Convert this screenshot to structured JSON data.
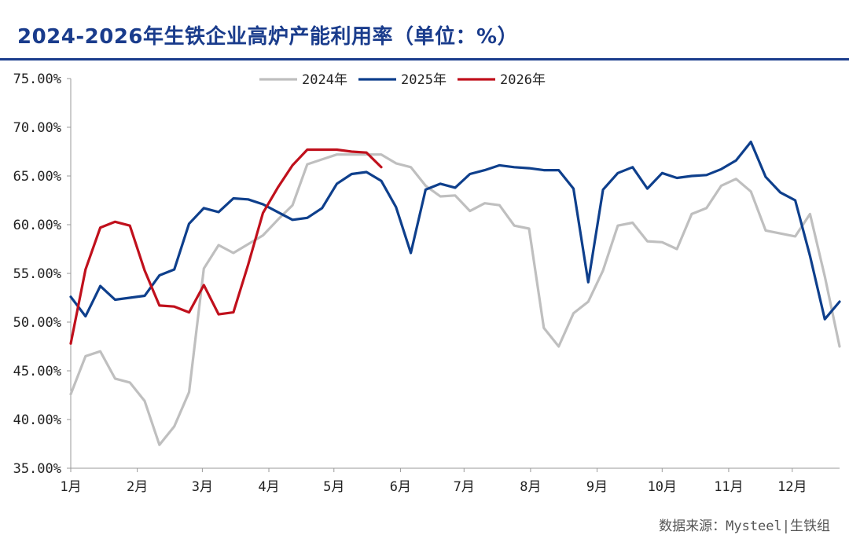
{
  "title": "2024-2026年生铁企业高炉产能利用率（单位：%）",
  "source": "数据来源：Mysteel|生铁组",
  "colors": {
    "title": "#1a3c8c",
    "s2024": "#bfbfbf",
    "s2025": "#0e3f8c",
    "s2026": "#c0101c"
  },
  "chart_data": {
    "type": "line",
    "title": "2024-2026年生铁企业高炉产能利用率（单位：%）",
    "xlabel": "",
    "ylabel": "",
    "ylim": [
      35,
      75
    ],
    "xlim": [
      1,
      53
    ],
    "y_ticks": [
      35,
      40,
      45,
      50,
      55,
      60,
      65,
      70,
      75
    ],
    "y_tick_labels": [
      "35.00%",
      "40.00%",
      "45.00%",
      "50.00%",
      "55.00%",
      "60.00%",
      "65.00%",
      "70.00%",
      "75.00%"
    ],
    "x_tick_labels": [
      {
        "label": "1月",
        "week": 1
      },
      {
        "label": "2月",
        "week": 5.5
      },
      {
        "label": "3月",
        "week": 9.9
      },
      {
        "label": "4月",
        "week": 14.4
      },
      {
        "label": "5月",
        "week": 18.8
      },
      {
        "label": "6月",
        "week": 23.3
      },
      {
        "label": "7月",
        "week": 27.6
      },
      {
        "label": "8月",
        "week": 32.1
      },
      {
        "label": "9月",
        "week": 36.6
      },
      {
        "label": "10月",
        "week": 41
      },
      {
        "label": "11月",
        "week": 45.5
      },
      {
        "label": "12月",
        "week": 49.8
      }
    ],
    "legend_position": "top",
    "grid": false,
    "series": [
      {
        "name": "2024年",
        "color": "#bfbfbf",
        "x": [
          1,
          2,
          3,
          4,
          5,
          6,
          7,
          8,
          9,
          10,
          11,
          12,
          13,
          14,
          15,
          16,
          17,
          18,
          19,
          20,
          21,
          22,
          23,
          24,
          25,
          26,
          27,
          28,
          29,
          30,
          31,
          32,
          33,
          34,
          35,
          36,
          37,
          38,
          39,
          40,
          41,
          42,
          43,
          44,
          45,
          46,
          47,
          48,
          49,
          50,
          51,
          52,
          53
        ],
        "values": [
          42.6,
          46.5,
          47.0,
          44.2,
          43.8,
          41.9,
          37.4,
          39.3,
          42.8,
          55.5,
          57.9,
          57.1,
          58.0,
          58.9,
          60.5,
          62.0,
          66.2,
          66.7,
          67.2,
          67.2,
          67.2,
          67.2,
          66.3,
          65.9,
          64.0,
          62.9,
          63.0,
          61.4,
          62.2,
          62.0,
          59.9,
          59.6,
          49.4,
          47.5,
          50.9,
          52.1,
          55.3,
          59.9,
          60.2,
          58.3,
          58.2,
          57.5,
          61.1,
          61.7,
          64.0,
          64.7,
          63.4,
          59.4,
          59.1,
          58.8,
          61.1,
          54.7,
          47.5
        ]
      },
      {
        "name": "2025年",
        "color": "#0e3f8c",
        "x": [
          1,
          2,
          3,
          4,
          5,
          6,
          7,
          8,
          9,
          10,
          11,
          12,
          13,
          14,
          15,
          16,
          17,
          18,
          19,
          20,
          21,
          22,
          23,
          24,
          25,
          26,
          27,
          28,
          29,
          30,
          31,
          32,
          33,
          34,
          35,
          36,
          37,
          38,
          39,
          40,
          41,
          42,
          43,
          44,
          45,
          46,
          47,
          48,
          49,
          50,
          51,
          52,
          53
        ],
        "values": [
          52.6,
          50.6,
          53.7,
          52.3,
          52.5,
          52.7,
          54.8,
          55.4,
          60.1,
          61.7,
          61.3,
          62.7,
          62.6,
          62.1,
          61.3,
          60.5,
          60.7,
          61.7,
          64.2,
          65.2,
          65.4,
          64.5,
          61.8,
          57.1,
          63.6,
          64.2,
          63.8,
          65.2,
          65.6,
          66.1,
          65.9,
          65.8,
          65.6,
          65.6,
          63.7,
          54.1,
          63.6,
          65.3,
          65.9,
          63.7,
          65.3,
          64.8,
          65.0,
          65.1,
          65.7,
          66.6,
          68.5,
          64.9,
          63.3,
          62.5,
          56.8,
          50.3,
          52.1
        ]
      },
      {
        "name": "2026年",
        "color": "#c0101c",
        "x": [
          1,
          2,
          3,
          4,
          5,
          6,
          7,
          8,
          9,
          10,
          11,
          12,
          13,
          14,
          15,
          16,
          17,
          18,
          19,
          20,
          21,
          22
        ],
        "values": [
          47.8,
          55.4,
          59.7,
          60.3,
          59.9,
          55.3,
          51.7,
          51.6,
          51.0,
          53.8,
          50.8,
          51.0,
          55.9,
          61.2,
          63.8,
          66.1,
          67.7,
          67.7,
          67.7,
          67.5,
          67.4,
          65.9
        ]
      }
    ]
  }
}
